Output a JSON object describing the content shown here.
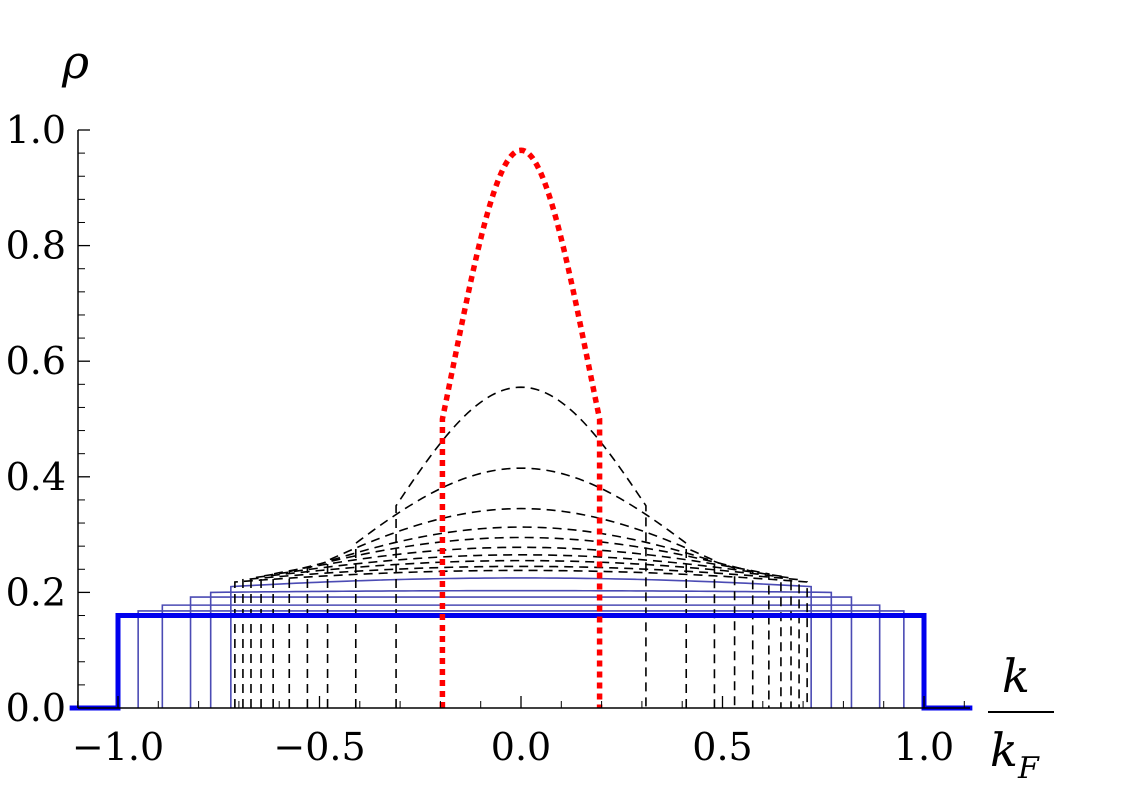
{
  "chart_data": {
    "type": "line",
    "title": "",
    "xlabel": {
      "numerator": "k",
      "denominator": "k",
      "denominator_sub": "F"
    },
    "ylabel": "ρ",
    "xlim": [
      -1.12,
      1.12
    ],
    "ylim": [
      0,
      1.0
    ],
    "x_ticks": [
      -1.0,
      -0.5,
      0.0,
      0.5,
      1.0
    ],
    "x_tick_labels": [
      "−1.0",
      "−0.5",
      "0.0",
      "0.5",
      "1.0"
    ],
    "y_ticks": [
      0.0,
      0.2,
      0.4,
      0.6,
      0.8,
      1.0
    ],
    "y_tick_labels": [
      "0.0",
      "0.2",
      "0.4",
      "0.6",
      "0.8",
      "1.0"
    ],
    "grid": false,
    "colors": {
      "thick_step": "#0000ee",
      "thin_step": "#4b4bb4",
      "dashed": "#000000",
      "dotted": "#ff0000"
    },
    "series": [
      {
        "style": "thick-solid",
        "color": "#0000ee",
        "cutoff": 1.0,
        "peak": 0.16,
        "edge": 0.16
      },
      {
        "style": "thin-solid",
        "color": "#4b4bb4",
        "cutoff": 0.95,
        "peak": 0.168,
        "edge": 0.168
      },
      {
        "style": "thin-solid",
        "color": "#4b4bb4",
        "cutoff": 0.89,
        "peak": 0.178,
        "edge": 0.178
      },
      {
        "style": "thin-solid",
        "color": "#4b4bb4",
        "cutoff": 0.82,
        "peak": 0.192,
        "edge": 0.192
      },
      {
        "style": "thin-solid",
        "color": "#4b4bb4",
        "cutoff": 0.77,
        "peak": 0.203,
        "edge": 0.2
      },
      {
        "style": "thin-solid",
        "color": "#4b4bb4",
        "cutoff": 0.72,
        "peak": 0.225,
        "edge": 0.21
      },
      {
        "style": "dashed",
        "color": "#000000",
        "cutoff": 0.71,
        "peak": 0.238,
        "edge": 0.218
      },
      {
        "style": "dashed",
        "color": "#000000",
        "cutoff": 0.69,
        "peak": 0.245,
        "edge": 0.222
      },
      {
        "style": "dashed",
        "color": "#000000",
        "cutoff": 0.67,
        "peak": 0.255,
        "edge": 0.225
      },
      {
        "style": "dashed",
        "color": "#000000",
        "cutoff": 0.645,
        "peak": 0.265,
        "edge": 0.228
      },
      {
        "style": "dashed",
        "color": "#000000",
        "cutoff": 0.615,
        "peak": 0.278,
        "edge": 0.232
      },
      {
        "style": "dashed",
        "color": "#000000",
        "cutoff": 0.575,
        "peak": 0.295,
        "edge": 0.236
      },
      {
        "style": "dashed",
        "color": "#000000",
        "cutoff": 0.53,
        "peak": 0.313,
        "edge": 0.242
      },
      {
        "style": "dashed",
        "color": "#000000",
        "cutoff": 0.48,
        "peak": 0.345,
        "edge": 0.255
      },
      {
        "style": "dashed",
        "color": "#000000",
        "cutoff": 0.41,
        "peak": 0.415,
        "edge": 0.285
      },
      {
        "style": "dashed",
        "color": "#000000",
        "cutoff": 0.31,
        "peak": 0.555,
        "edge": 0.35
      },
      {
        "style": "dotted",
        "color": "#ff0000",
        "cutoff": 0.195,
        "peak": 0.965,
        "edge": 0.5
      }
    ]
  }
}
